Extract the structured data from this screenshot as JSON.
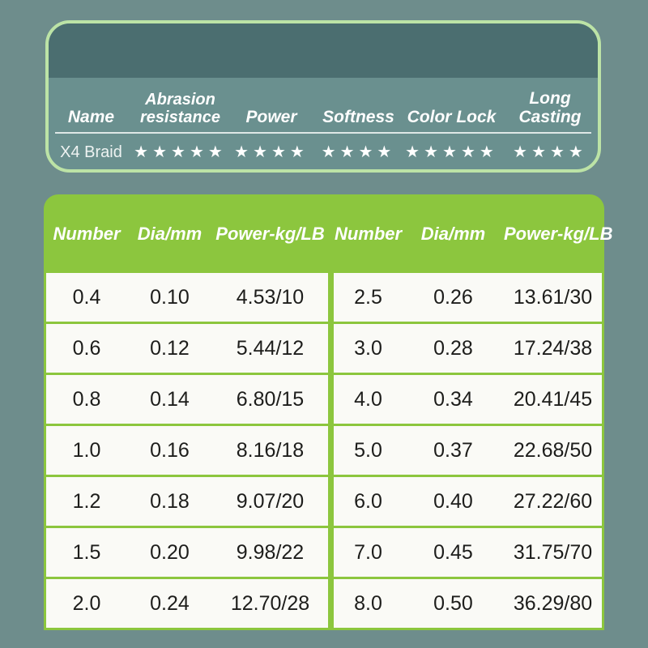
{
  "page": {
    "bg_color": "#6e8d8c"
  },
  "spec_card": {
    "border_color": "#bce3a6",
    "banner_color": "#4b6e70",
    "body_color": "#6a908f",
    "headers": [
      "Name",
      "Abrasion resistance",
      "Power",
      "Softness",
      "Color Lock",
      "Long Casting"
    ],
    "product": {
      "name": "X4 Braid",
      "ratings": [
        5,
        4,
        4,
        5,
        4
      ]
    },
    "star_icon": "★",
    "max_stars": 5
  },
  "size_table": {
    "accent_color": "#8cc63e",
    "cell_bg_color": "#fafaf6",
    "headers": [
      "Number",
      "Dia/mm",
      "Power-kg/LB",
      "Number",
      "Dia/mm",
      "Power-kg/LB"
    ],
    "rows": [
      [
        "0.4",
        "0.10",
        "4.53/10",
        "2.5",
        "0.26",
        "13.61/30"
      ],
      [
        "0.6",
        "0.12",
        "5.44/12",
        "3.0",
        "0.28",
        "17.24/38"
      ],
      [
        "0.8",
        "0.14",
        "6.80/15",
        "4.0",
        "0.34",
        "20.41/45"
      ],
      [
        "1.0",
        "0.16",
        "8.16/18",
        "5.0",
        "0.37",
        "22.68/50"
      ],
      [
        "1.2",
        "0.18",
        "9.07/20",
        "6.0",
        "0.40",
        "27.22/60"
      ],
      [
        "1.5",
        "0.20",
        "9.98/22",
        "7.0",
        "0.45",
        "31.75/70"
      ],
      [
        "2.0",
        "0.24",
        "12.70/28",
        "8.0",
        "0.50",
        "36.29/80"
      ]
    ]
  }
}
